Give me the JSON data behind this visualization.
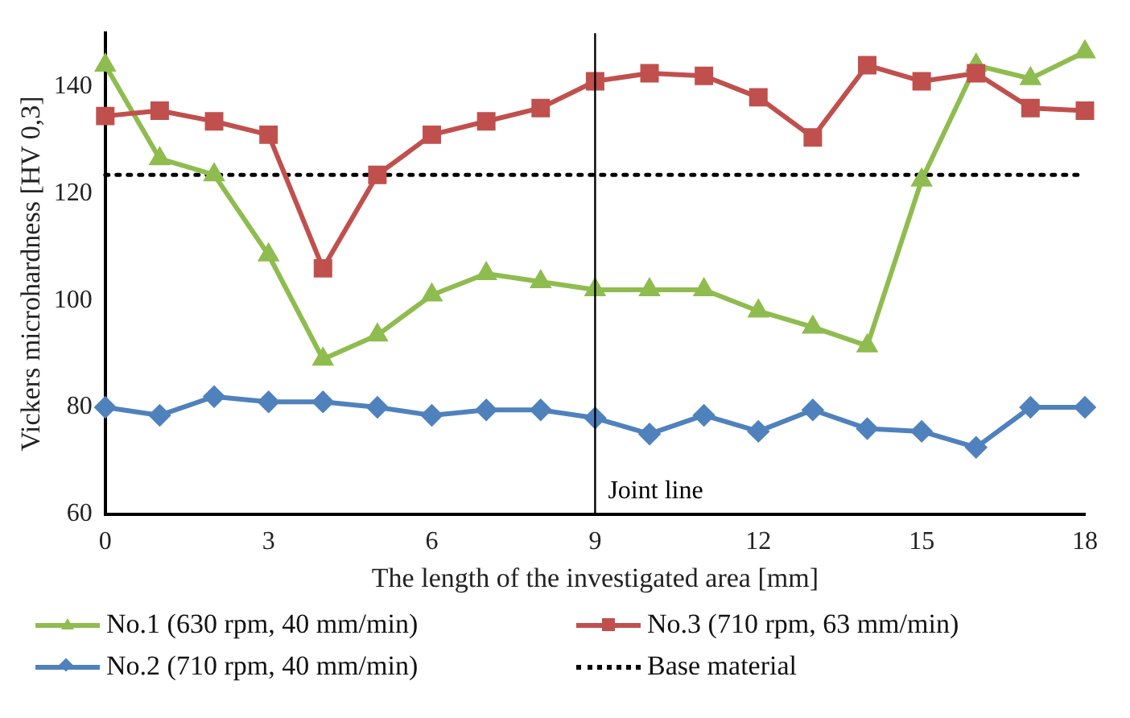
{
  "chart_data": {
    "type": "line",
    "xlabel": "The length of the investigated area [mm]",
    "ylabel": "Vickers microhardness [HV 0,3]",
    "x": [
      0,
      1,
      2,
      3,
      4,
      5,
      6,
      7,
      8,
      9,
      10,
      11,
      12,
      13,
      14,
      15,
      16,
      17,
      18
    ],
    "series": [
      {
        "name": "No.1 (630 rpm, 40 mm/min)",
        "color": "#8fbc4f",
        "marker": "triangle",
        "values": [
          144,
          126.5,
          123.5,
          108.5,
          89,
          93.5,
          101,
          105,
          103.5,
          102,
          102,
          102,
          98,
          95,
          91.5,
          122.5,
          144,
          141.5,
          146.5
        ]
      },
      {
        "name": "No.3 (710 rpm, 63 mm/min)",
        "color": "#c0504d",
        "marker": "square",
        "values": [
          134.5,
          135.5,
          133.5,
          131,
          106,
          123.5,
          131,
          133.5,
          136,
          141,
          142.5,
          142,
          138,
          130.5,
          144,
          141,
          142.5,
          136,
          135.5
        ]
      },
      {
        "name": "No.2 (710 rpm, 40 mm/min)",
        "color": "#4f81bd",
        "marker": "diamond",
        "values": [
          80,
          78.5,
          82,
          81,
          81,
          80,
          78.5,
          79.5,
          79.5,
          78,
          75,
          78.5,
          75.5,
          79.5,
          76,
          75.5,
          72.5,
          80,
          80
        ]
      },
      {
        "name": "Base material",
        "color": "#000000",
        "marker": "none",
        "line_style": "dotted",
        "values": [
          123.5,
          123.5,
          123.5,
          123.5,
          123.5,
          123.5,
          123.5,
          123.5,
          123.5,
          123.5,
          123.5,
          123.5,
          123.5,
          123.5,
          123.5,
          123.5,
          123.5,
          123.5,
          123.5
        ]
      }
    ],
    "xlim": [
      0,
      18
    ],
    "xticks": [
      0,
      3,
      6,
      9,
      12,
      15,
      18
    ],
    "ylim": [
      60,
      150
    ],
    "yticks": [
      60,
      80,
      100,
      120,
      140
    ],
    "ref_lines": [
      {
        "axis": "x",
        "value": 9,
        "label": "Joint line",
        "color": "#000000"
      }
    ],
    "grid": false,
    "legend": "bottom"
  }
}
